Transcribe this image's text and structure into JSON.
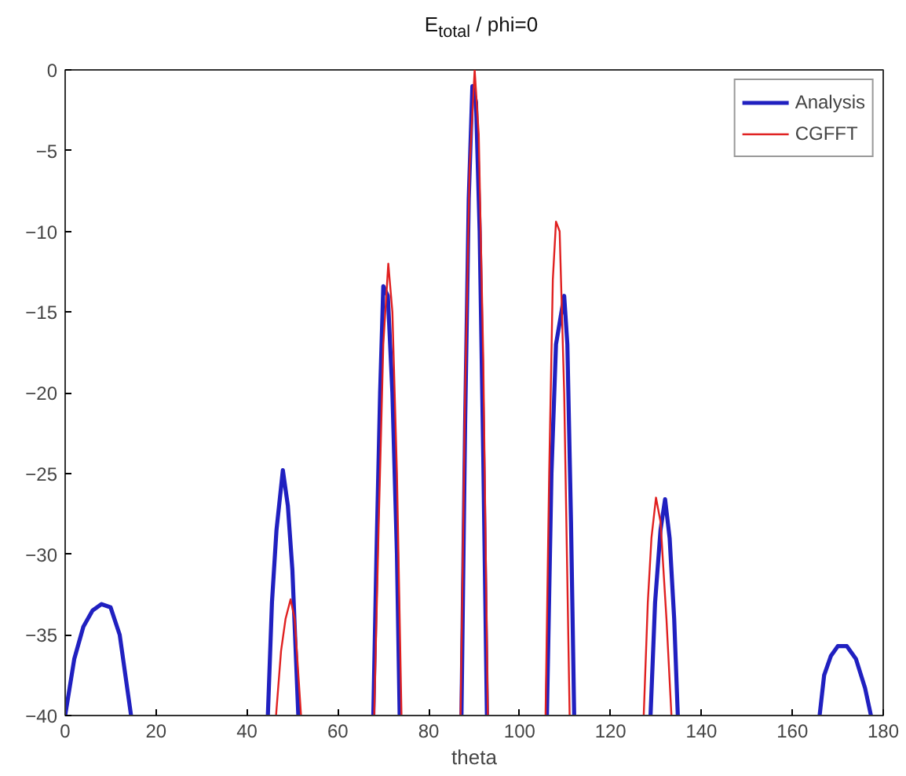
{
  "chart_data": {
    "type": "line",
    "title": "E$_{total}$ / phi=0",
    "xlabel": "theta",
    "xlim": [
      0,
      180
    ],
    "xticks": [
      0,
      20,
      40,
      60,
      80,
      100,
      120,
      140,
      160,
      180
    ],
    "ylim": [
      -40,
      0
    ],
    "yticks": [
      -40,
      -35,
      -30,
      -25,
      -20,
      -15,
      -10,
      -5,
      0
    ],
    "grid": false,
    "legend": "top right",
    "marker": "none",
    "line_style": "solid",
    "series": [
      {
        "name": "Analysis",
        "color": "#2020c0",
        "x": [
          0,
          2,
          4,
          6,
          8,
          10,
          12,
          14.5,
          30,
          44.6,
          45.5,
          46.5,
          47.9,
          49,
          50,
          51.3,
          60,
          67.8,
          68.5,
          69.3,
          70,
          71,
          72,
          73,
          73.6,
          80,
          87.2,
          88,
          88.8,
          89.6,
          90.4,
          91.2,
          92,
          92.8,
          99,
          106,
          107,
          108,
          109.8,
          110.5,
          111.3,
          112,
          120,
          128.8,
          129.8,
          131,
          132,
          133,
          134,
          134.8,
          150,
          166,
          167,
          168.5,
          170,
          172,
          174,
          176,
          177.3
        ],
        "values": [
          -40,
          -36.5,
          -34.5,
          -33.5,
          -33.1,
          -33.3,
          -35,
          -40,
          null,
          -40,
          -33,
          -28.5,
          -24.8,
          -27,
          -31,
          -40,
          null,
          -40,
          -30,
          -20,
          -13.4,
          -14,
          -20,
          -30,
          -40,
          null,
          -40,
          -22,
          -8,
          -1,
          -2,
          -10,
          -24,
          -40,
          null,
          -40,
          -25,
          -17,
          -14,
          -17,
          -28,
          -40,
          null,
          -40,
          -33,
          -28.5,
          -26.6,
          -29,
          -34,
          -40,
          null,
          -40,
          -37.5,
          -36.3,
          -35.7,
          -35.7,
          -36.5,
          -38.3,
          -40
        ]
      },
      {
        "name": "CGFFT",
        "color": "#e02020",
        "x": [
          46.4,
          47.5,
          48.5,
          49.6,
          50.5,
          51.2,
          51.9,
          60,
          68,
          69,
          70,
          71.1,
          72,
          73,
          74,
          80,
          87,
          88,
          89,
          90.1,
          91,
          92,
          93,
          99,
          105.7,
          106.5,
          107.3,
          108,
          108.8,
          109.8,
          111,
          120,
          127.3,
          128.2,
          129,
          130,
          131,
          132.3,
          133.4
        ],
        "values": [
          -40,
          -36,
          -34,
          -32.8,
          -34,
          -37,
          -40,
          null,
          -40,
          -28,
          -17,
          -12,
          -15,
          -25,
          -40,
          null,
          -40,
          -20,
          -6,
          0,
          -4,
          -18,
          -40,
          null,
          -40,
          -25,
          -13,
          -9.4,
          -10,
          -20,
          -40,
          null,
          -40,
          -33,
          -29,
          -26.5,
          -28,
          -34,
          -40
        ]
      }
    ]
  }
}
